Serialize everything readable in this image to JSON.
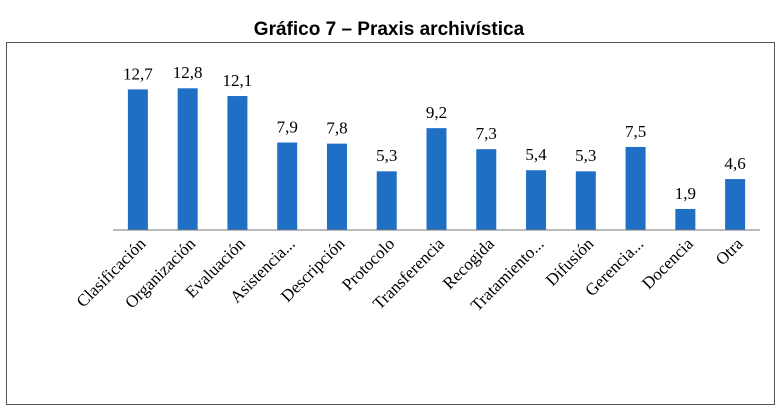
{
  "chart_data": {
    "type": "bar",
    "title": "Gráfico 7 – Praxis archivística",
    "categories": [
      "Clasificación",
      "Organización",
      "Evaluación",
      "Asistencia...",
      "Descripción",
      "Protocolo",
      "Transferencia",
      "Recogida",
      "Tratamiento...",
      "Difusión",
      "Gerencia...",
      "Docencia",
      "Otra"
    ],
    "values": [
      12.7,
      12.8,
      12.1,
      7.9,
      7.8,
      5.3,
      9.2,
      7.3,
      5.4,
      5.3,
      7.5,
      1.9,
      4.6
    ],
    "value_labels": [
      "12,7",
      "12,8",
      "12,1",
      "7,9",
      "7,8",
      "5,3",
      "9,2",
      "7,3",
      "5,4",
      "5,3",
      "7,5",
      "1,9",
      "4,6"
    ],
    "color": "#1f6fc5",
    "ylim": [
      0,
      14
    ]
  }
}
